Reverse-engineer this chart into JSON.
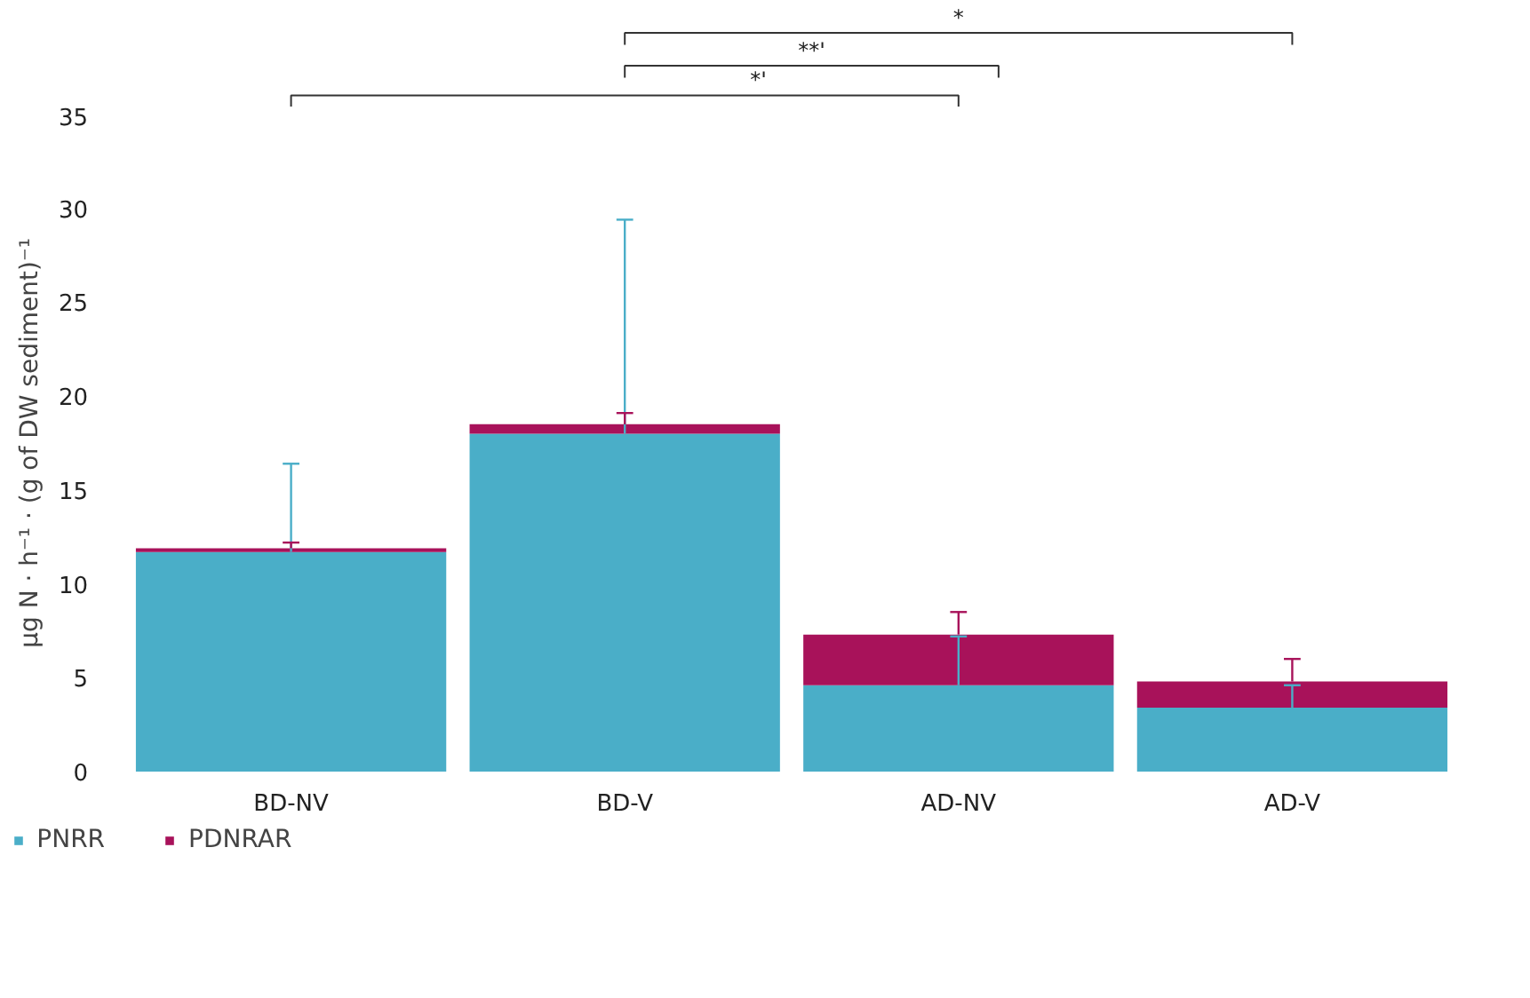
{
  "chart_data": {
    "type": "bar",
    "stacked": true,
    "ylabel": "µg N · h⁻¹ · (g of DW sediment)⁻¹",
    "categories": [
      "BD-NV",
      "BD-V",
      "AD-NV",
      "AD-V"
    ],
    "series": [
      {
        "name": "PNRR",
        "color": "#4aaec8",
        "values": [
          11.7,
          18.0,
          4.6,
          3.4
        ],
        "errors": [
          [
            11.7,
            16.4
          ],
          [
            18.0,
            29.4
          ],
          [
            4.6,
            7.2
          ],
          [
            3.4,
            4.6
          ]
        ]
      },
      {
        "name": "PDNRAR",
        "color": "#a8125a",
        "values": [
          0.2,
          0.5,
          2.7,
          1.4
        ],
        "errors": [
          [
            11.9,
            12.2
          ],
          [
            18.5,
            19.1
          ],
          [
            7.3,
            8.5
          ],
          [
            4.8,
            6.0
          ]
        ]
      }
    ],
    "ylim": [
      0,
      35
    ],
    "yticks": [
      0,
      5,
      10,
      15,
      20,
      25,
      30,
      35
    ],
    "grid": false,
    "legend": "bottom left",
    "annotations": [
      "*'",
      "**'",
      "*"
    ]
  }
}
